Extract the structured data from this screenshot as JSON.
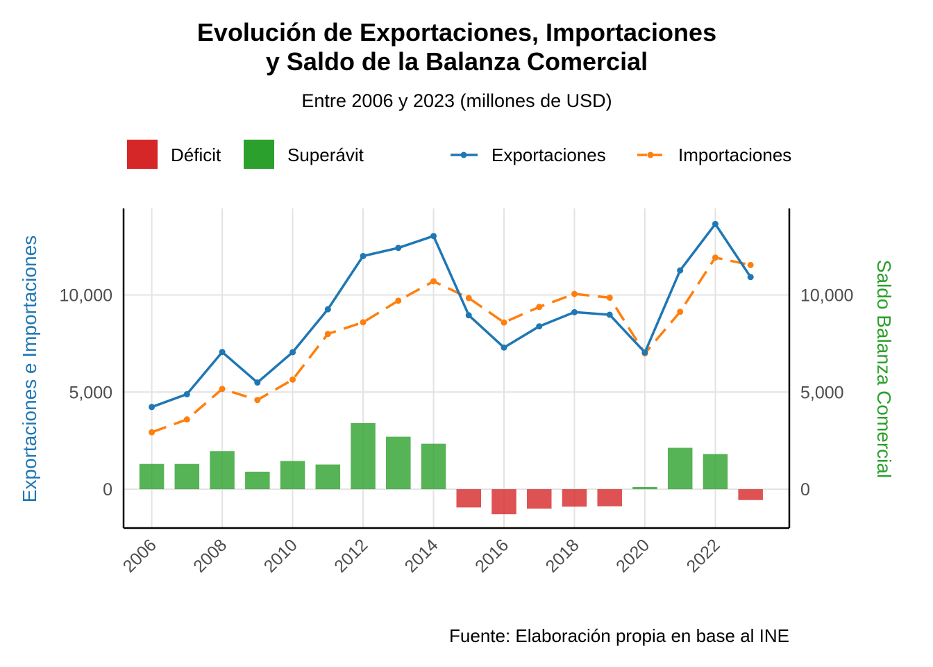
{
  "title_line1": "Evolución de Exportaciones, Importaciones",
  "title_line2": "y Saldo de la Balanza Comercial",
  "subtitle": "Entre 2006 y 2023 (millones de USD)",
  "caption": "Fuente: Elaboración propia en base al INE",
  "legend": {
    "deficit": "Déficit",
    "superavit": "Superávit",
    "exports": "Exportaciones",
    "imports": "Importaciones"
  },
  "colors": {
    "deficit": "#d62728",
    "superavit": "#2ca02c",
    "exports": "#1f77b4",
    "imports": "#ff7f0e"
  },
  "chart_data": {
    "type": "bar",
    "x": [
      2006,
      2007,
      2008,
      2009,
      2010,
      2011,
      2012,
      2013,
      2014,
      2015,
      2016,
      2017,
      2018,
      2019,
      2020,
      2021,
      2022,
      2023
    ],
    "x_tick_labels": [
      "2006",
      "2008",
      "2010",
      "2012",
      "2014",
      "2016",
      "2018",
      "2020",
      "2022"
    ],
    "xlim": [
      2005.2,
      2024.1
    ],
    "ylim": [
      -2000,
      14450
    ],
    "y_ticks": [
      0,
      5000,
      10000
    ],
    "y_tick_labels": [
      "0",
      "5,000",
      "10,000"
    ],
    "ylabel_left": "Exportaciones e Importaciones",
    "ylabel_right": "Saldo Balanza Comercial",
    "grid": true,
    "legend_position": "top",
    "series": [
      {
        "name": "Exportaciones",
        "type": "line",
        "values": [
          4230,
          4890,
          7060,
          5490,
          7050,
          9260,
          12000,
          12420,
          13030,
          8950,
          7290,
          8380,
          9110,
          8980,
          7040,
          11260,
          13650,
          10920
        ]
      },
      {
        "name": "Importaciones",
        "type": "line",
        "values": [
          2930,
          3590,
          5160,
          4590,
          5640,
          7990,
          8590,
          9700,
          10700,
          9840,
          8580,
          9380,
          10050,
          9860,
          6990,
          9130,
          11920,
          11540
        ]
      },
      {
        "name": "Saldo",
        "type": "bar",
        "values": [
          1300,
          1300,
          1960,
          900,
          1450,
          1270,
          3400,
          2700,
          2340,
          -940,
          -1290,
          -1000,
          -900,
          -880,
          110,
          2130,
          1810,
          -560
        ]
      }
    ]
  }
}
